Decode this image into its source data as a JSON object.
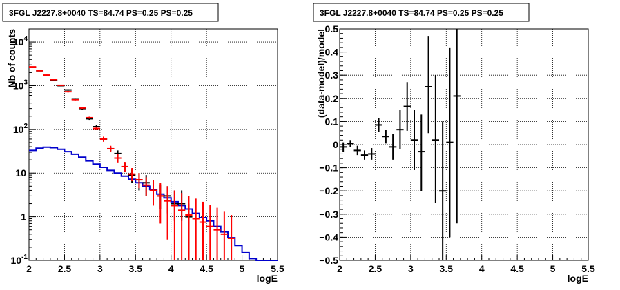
{
  "chart_data": [
    {
      "type": "histogram",
      "title": "3FGL J2227.8+0040 TS=84.74 PS=0.25 PS=0.25",
      "xlabel": "logE",
      "ylabel": "Nb of counts",
      "xlim": [
        2,
        5.5
      ],
      "ylim": [
        0.1,
        20000
      ],
      "yscale": "log",
      "grid": true,
      "x_ticks": [
        2,
        2.5,
        3,
        3.5,
        4,
        4.5,
        5,
        5.5
      ],
      "x_tick_labels": [
        "2",
        "2.5",
        "3",
        "3.5",
        "4",
        "4.5",
        "5",
        "5.5"
      ],
      "y_ticks": [
        0.1,
        1,
        10,
        100,
        1000,
        10000
      ],
      "y_tick_labels": [
        "10^-1",
        "1",
        "10",
        "10^2",
        "10^3",
        "10^4"
      ],
      "bin_edges": [
        2.0,
        2.1,
        2.2,
        2.3,
        2.4,
        2.5,
        2.6,
        2.7,
        2.8,
        2.9,
        3.0,
        3.1,
        3.2,
        3.3,
        3.4,
        3.5,
        3.6,
        3.7,
        3.8,
        3.9,
        4.0,
        4.1,
        4.2,
        4.3,
        4.4,
        4.5,
        4.6,
        4.7,
        4.8,
        4.9,
        5.0,
        5.1,
        5.2,
        5.3,
        5.4,
        5.5
      ],
      "series": [
        {
          "color": "#0000cc",
          "kind": "step",
          "values": [
            33,
            37,
            39,
            38,
            35,
            31,
            27,
            23,
            19,
            16,
            13.5,
            11.5,
            10,
            8.5,
            7.2,
            6,
            5,
            4.2,
            3.3,
            2.7,
            2.2,
            1.8,
            1.5,
            1.2,
            0.95,
            0.8,
            0.6,
            0.45,
            0.33,
            0.22,
            0.15,
            0.11,
            0.1,
            0.1,
            0.1
          ]
        },
        {
          "color": "#ff0000",
          "kind": "points",
          "x": [
            2.05,
            2.15,
            2.25,
            2.35,
            2.45,
            2.55,
            2.65,
            2.75,
            2.85,
            2.95,
            3.05,
            3.15,
            3.25,
            3.35,
            3.45,
            3.55,
            3.65,
            3.75,
            3.85,
            3.95,
            4.05,
            4.15,
            4.25,
            4.35,
            4.45,
            4.55,
            4.65,
            4.75,
            4.85
          ],
          "y": [
            2700,
            2200,
            1750,
            1380,
            1020,
            730,
            480,
            310,
            185,
            105,
            60,
            36,
            22,
            14,
            9.5,
            7,
            5.3,
            4.0,
            3.0,
            2.3,
            1.8,
            1.4,
            1.1,
            0.9,
            0.75,
            0.6,
            0.5,
            0.4,
            0.32
          ],
          "y_low": [
            2650,
            2150,
            1700,
            1340,
            985,
            700,
            460,
            295,
            175,
            97,
            52,
            30,
            17.5,
            10.5,
            6.5,
            4.5,
            3.0,
            1.8,
            0.7,
            0.3,
            0.1,
            0.1,
            0.1,
            0.1,
            0.1,
            0.1,
            0.1,
            0.1,
            0.1
          ],
          "y_high": [
            2750,
            2250,
            1800,
            1420,
            1055,
            760,
            500,
            325,
            195,
            113,
            68,
            42,
            27,
            18,
            13,
            10,
            8,
            7,
            6,
            5,
            4,
            3.5,
            3.0,
            2.6,
            2.2,
            1.9,
            1.6,
            1.3,
            1.1
          ]
        },
        {
          "color": "#000000",
          "kind": "points",
          "x": [
            2.05,
            2.15,
            2.25,
            2.35,
            2.45,
            2.55,
            2.65,
            2.75,
            2.85,
            2.95,
            3.05,
            3.15,
            3.25,
            3.35,
            3.45,
            3.55,
            3.65,
            3.75,
            3.85,
            3.95,
            4.05,
            4.15,
            4.25
          ],
          "y": [
            2650,
            2200,
            1700,
            1320,
            1000,
            800,
            500,
            300,
            175,
            115,
            60,
            36,
            28,
            14,
            9,
            7,
            6,
            4,
            3,
            3,
            2,
            2,
            1
          ],
          "y_low": [
            2600,
            2150,
            1650,
            1280,
            970,
            770,
            480,
            285,
            165,
            105,
            54,
            32,
            23,
            11,
            6,
            4,
            3,
            2,
            1.5,
            1.2,
            0.8,
            0.8,
            0.1
          ],
          "y_high": [
            2700,
            2250,
            1750,
            1360,
            1030,
            830,
            520,
            315,
            185,
            125,
            66,
            40,
            33,
            17,
            12,
            10,
            9,
            7,
            5.5,
            5,
            4,
            4,
            2
          ]
        }
      ]
    },
    {
      "type": "scatter",
      "title": "3FGL J2227.8+0040 TS=84.74 PS=0.25 PS=0.25",
      "xlabel": "logE",
      "ylabel": "(data-model)/model",
      "xlim": [
        2,
        5.5
      ],
      "ylim": [
        -0.5,
        0.5
      ],
      "grid": true,
      "x_ticks": [
        2,
        2.5,
        3,
        3.5,
        4,
        4.5,
        5,
        5.5
      ],
      "x_tick_labels": [
        "2",
        "2.5",
        "3",
        "3.5",
        "4",
        "4.5",
        "5",
        "5.5"
      ],
      "y_ticks": [
        -0.5,
        -0.4,
        -0.3,
        -0.2,
        -0.1,
        0,
        0.1,
        0.2,
        0.3,
        0.4,
        0.5
      ],
      "y_tick_labels": [
        "−0.5",
        "−0.4",
        "−0.3",
        "−0.2",
        "−0.1",
        "0",
        "0.1",
        "0.2",
        "0.3",
        "0.4",
        "0.5"
      ],
      "series": [
        {
          "color": "#000000",
          "x": [
            2.05,
            2.15,
            2.25,
            2.35,
            2.45,
            2.55,
            2.65,
            2.75,
            2.85,
            2.95,
            3.05,
            3.15,
            3.25,
            3.35,
            3.45,
            3.55,
            3.65
          ],
          "y": [
            -0.01,
            0.005,
            -0.025,
            -0.045,
            -0.04,
            0.085,
            0.035,
            -0.01,
            0.065,
            0.165,
            0.02,
            -0.03,
            0.25,
            0.02,
            -0.2,
            0.01,
            0.21
          ],
          "y_low": [
            -0.03,
            -0.01,
            -0.045,
            -0.065,
            -0.065,
            0.055,
            0.005,
            -0.065,
            -0.02,
            0.06,
            -0.11,
            -0.2,
            0.05,
            -0.25,
            -0.5,
            -0.4,
            -0.34
          ],
          "y_high": [
            0.01,
            0.02,
            -0.005,
            -0.025,
            -0.015,
            0.115,
            0.065,
            0.045,
            0.15,
            0.27,
            0.15,
            0.13,
            0.47,
            0.3,
            0.1,
            0.42,
            0.5
          ]
        }
      ]
    }
  ]
}
